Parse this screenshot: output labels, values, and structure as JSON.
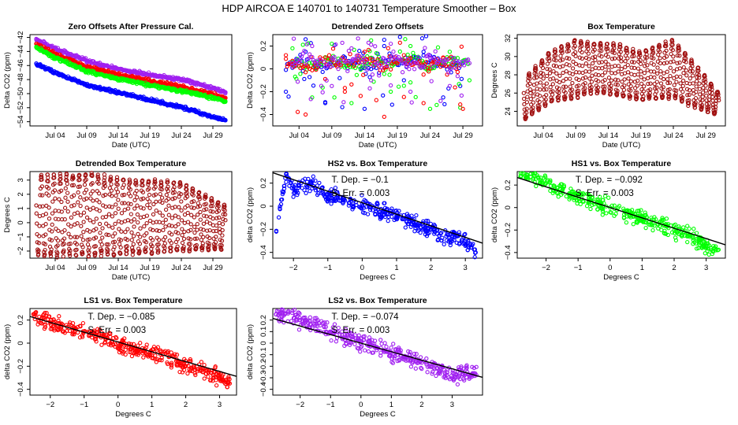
{
  "figure": {
    "title": "HDP    AIRCOA E    140701 to 140731    Temperature Smoother – Box"
  },
  "chart_data": [
    {
      "type": "scatter",
      "title": "Zero Offsets After Pressure Cal.",
      "xlabel": "Date (UTC)",
      "ylabel": "Delta CO2 (ppm)",
      "x_axis": "date",
      "xlim": [
        "2014-06-30",
        "2014-08-01"
      ],
      "ylim": [
        -54.6,
        -41.6
      ],
      "yticks": [
        -54,
        -52,
        -50,
        -48,
        -46,
        -44,
        -42
      ],
      "xticks": [
        {
          "date": "2014-07-04",
          "label": "Jul 04"
        },
        {
          "date": "2014-07-09",
          "label": "Jul 09"
        },
        {
          "date": "2014-07-14",
          "label": "Jul 14"
        },
        {
          "date": "2014-07-19",
          "label": "Jul 19"
        },
        {
          "date": "2014-07-24",
          "label": "Jul 24"
        },
        {
          "date": "2014-07-29",
          "label": "Jul 29"
        }
      ],
      "series": [
        {
          "color": "#a020f0",
          "x": [
            "2014-07-01",
            "2014-07-04",
            "2014-07-09",
            "2014-07-14",
            "2014-07-19",
            "2014-07-24",
            "2014-07-29",
            "2014-07-31"
          ],
          "y": [
            -42.3,
            -43.6,
            -45.3,
            -46.5,
            -47.3,
            -48.0,
            -49.2,
            -49.8
          ]
        },
        {
          "color": "#ff0000",
          "x": [
            "2014-07-01",
            "2014-07-04",
            "2014-07-09",
            "2014-07-14",
            "2014-07-19",
            "2014-07-24",
            "2014-07-29",
            "2014-07-31"
          ],
          "y": [
            -42.9,
            -44.4,
            -46.2,
            -47.3,
            -48.2,
            -49.0,
            -50.1,
            -50.6
          ]
        },
        {
          "color": "#00ff00",
          "x": [
            "2014-07-01",
            "2014-07-04",
            "2014-07-09",
            "2014-07-14",
            "2014-07-19",
            "2014-07-24",
            "2014-07-29",
            "2014-07-31"
          ],
          "y": [
            -43.4,
            -44.9,
            -46.8,
            -47.9,
            -48.8,
            -49.6,
            -50.6,
            -51.1
          ]
        },
        {
          "color": "#0000ff",
          "x": [
            "2014-07-01",
            "2014-07-04",
            "2014-07-09",
            "2014-07-14",
            "2014-07-19",
            "2014-07-24",
            "2014-07-29",
            "2014-07-31"
          ],
          "y": [
            -45.7,
            -47.0,
            -48.8,
            -49.8,
            -50.9,
            -51.9,
            -53.3,
            -53.8
          ]
        }
      ]
    },
    {
      "type": "scatter",
      "title": "Detrended Zero Offsets",
      "xlabel": "Date (UTC)",
      "ylabel": "Delta CO2 (ppm)",
      "x_axis": "date",
      "xlim": [
        "2014-06-30",
        "2014-08-01"
      ],
      "ylim": [
        -0.5,
        0.3
      ],
      "yticks": [
        -0.4,
        -0.2,
        0.0,
        0.2
      ],
      "xticks": [
        {
          "date": "2014-07-04",
          "label": "Jul 04"
        },
        {
          "date": "2014-07-09",
          "label": "Jul 09"
        },
        {
          "date": "2014-07-14",
          "label": "Jul 14"
        },
        {
          "date": "2014-07-19",
          "label": "Jul 19"
        },
        {
          "date": "2014-07-24",
          "label": "Jul 24"
        },
        {
          "date": "2014-07-29",
          "label": "Jul 29"
        }
      ],
      "series": [
        {
          "color": "#0000ff",
          "x": [
            "2014-07-02",
            "2014-07-05",
            "2014-07-08",
            "2014-07-11",
            "2014-07-14",
            "2014-07-17",
            "2014-07-20",
            "2014-07-23",
            "2014-07-26",
            "2014-07-29"
          ],
          "y": [
            -0.2,
            0.15,
            -0.3,
            0.1,
            -0.35,
            0.2,
            -0.1,
            0.15,
            -0.25,
            0.05
          ]
        },
        {
          "color": "#00ff00",
          "x": [
            "2014-07-03",
            "2014-07-06",
            "2014-07-09",
            "2014-07-12",
            "2014-07-15",
            "2014-07-18",
            "2014-07-21",
            "2014-07-24",
            "2014-07-27",
            "2014-07-30"
          ],
          "y": [
            0.18,
            -0.25,
            0.22,
            -0.3,
            0.25,
            -0.2,
            0.2,
            -0.35,
            0.15,
            -0.1
          ]
        },
        {
          "color": "#ff0000",
          "x": [
            "2014-07-02",
            "2014-07-05",
            "2014-07-08",
            "2014-07-11",
            "2014-07-14",
            "2014-07-17",
            "2014-07-20",
            "2014-07-23",
            "2014-07-26",
            "2014-07-29"
          ],
          "y": [
            0.12,
            -0.4,
            0.1,
            -0.2,
            0.15,
            -0.42,
            0.12,
            -0.3,
            0.1,
            -0.35
          ]
        },
        {
          "color": "#a020f0",
          "x": [
            "2014-07-03",
            "2014-07-06",
            "2014-07-09",
            "2014-07-12",
            "2014-07-15",
            "2014-07-18",
            "2014-07-21",
            "2014-07-24",
            "2014-07-27",
            "2014-07-30"
          ],
          "y": [
            0.05,
            0.2,
            -0.15,
            0.18,
            -0.1,
            0.22,
            -0.2,
            0.1,
            -0.15,
            0.05
          ]
        }
      ]
    },
    {
      "type": "scatter",
      "title": "Box Temperature",
      "xlabel": "Date (UTC)",
      "ylabel": "Degrees C",
      "x_axis": "date",
      "xlim": [
        "2014-06-30",
        "2014-08-01"
      ],
      "ylim": [
        22.4,
        32.4
      ],
      "yticks": [
        24,
        26,
        28,
        30,
        32
      ],
      "xticks": [
        {
          "date": "2014-07-04",
          "label": "Jul 04"
        },
        {
          "date": "2014-07-09",
          "label": "Jul 09"
        },
        {
          "date": "2014-07-14",
          "label": "Jul 14"
        },
        {
          "date": "2014-07-19",
          "label": "Jul 19"
        },
        {
          "date": "2014-07-24",
          "label": "Jul 24"
        },
        {
          "date": "2014-07-29",
          "label": "Jul 29"
        }
      ],
      "series": [
        {
          "color": "#a01010",
          "diurnal": true,
          "x": [
            "2014-07-01",
            "2014-07-05",
            "2014-07-09",
            "2014-07-11",
            "2014-07-15",
            "2014-07-19",
            "2014-07-24",
            "2014-07-27",
            "2014-07-31"
          ],
          "y_min": [
            23.0,
            25.0,
            25.5,
            26.0,
            25.8,
            25.2,
            25.5,
            24.5,
            23.5
          ],
          "y_max": [
            27.5,
            30.5,
            31.8,
            31.5,
            31.5,
            30.5,
            31.8,
            29.5,
            26.0
          ]
        }
      ]
    },
    {
      "type": "scatter",
      "title": "Detrended Box Temperature",
      "xlabel": "Date (UTC)",
      "ylabel": "Degrees C",
      "x_axis": "date",
      "xlim": [
        "2014-06-30",
        "2014-08-01"
      ],
      "ylim": [
        -2.5,
        3.6
      ],
      "yticks": [
        -2,
        -1,
        0,
        1,
        2,
        3
      ],
      "xticks": [
        {
          "date": "2014-07-04",
          "label": "Jul 04"
        },
        {
          "date": "2014-07-09",
          "label": "Jul 09"
        },
        {
          "date": "2014-07-14",
          "label": "Jul 14"
        },
        {
          "date": "2014-07-19",
          "label": "Jul 19"
        },
        {
          "date": "2014-07-24",
          "label": "Jul 24"
        },
        {
          "date": "2014-07-29",
          "label": "Jul 29"
        }
      ],
      "series": [
        {
          "color": "#a01010",
          "diurnal": true,
          "x": [
            "2014-07-01",
            "2014-07-09",
            "2014-07-16",
            "2014-07-24",
            "2014-07-31"
          ],
          "y_min": [
            -2.3,
            -2.3,
            -2.2,
            -2.0,
            -1.9
          ],
          "y_max": [
            3.3,
            3.4,
            3.0,
            2.8,
            1.2
          ]
        }
      ]
    },
    {
      "type": "scatter",
      "title": "HS2 vs. Box Temperature",
      "xlabel": "Degrees C",
      "ylabel": "delta CO2 (ppm)",
      "xlim": [
        -2.6,
        3.5
      ],
      "ylim": [
        -0.45,
        0.3
      ],
      "xticks": [
        -2,
        -1,
        0,
        1,
        2,
        3
      ],
      "yticks": [
        -0.4,
        -0.2,
        0.0,
        0.2
      ],
      "annotation": [
        "T. Dep. =  −0.1",
        "S. Err. =  0.003"
      ],
      "fit": {
        "slope": -0.1,
        "intercept": 0.03
      },
      "series": [
        {
          "color": "#0000ff",
          "x": [
            -2.5,
            -2.2,
            -2.0,
            -1.5,
            -1.0,
            -0.5,
            0.0,
            0.5,
            1.0,
            1.5,
            2.0,
            2.5,
            3.0,
            3.3
          ],
          "y": [
            -0.22,
            0.28,
            0.15,
            0.2,
            0.1,
            0.05,
            0.02,
            -0.05,
            -0.08,
            -0.15,
            -0.2,
            -0.25,
            -0.3,
            -0.4
          ]
        }
      ]
    },
    {
      "type": "scatter",
      "title": "HS1 vs. Box Temperature",
      "xlabel": "Degrees C",
      "ylabel": "delta CO2 (ppm)",
      "xlim": [
        -2.9,
        3.6
      ],
      "ylim": [
        -0.45,
        0.32
      ],
      "xticks": [
        -2,
        -1,
        0,
        1,
        2,
        3
      ],
      "yticks": [
        -0.4,
        -0.2,
        0.0,
        0.2
      ],
      "annotation": [
        "T. Dep. =  −0.092",
        "S. Err. =  0.003"
      ],
      "fit": {
        "slope": -0.092,
        "intercept": 0.0
      },
      "series": [
        {
          "color": "#00ff00",
          "x": [
            -2.4,
            -2.0,
            -1.5,
            -1.0,
            -0.5,
            0.0,
            0.5,
            1.0,
            1.5,
            2.0,
            2.5,
            3.0,
            3.3
          ],
          "y": [
            0.3,
            0.22,
            0.15,
            0.1,
            0.05,
            0.0,
            -0.05,
            -0.1,
            -0.15,
            -0.2,
            -0.25,
            -0.35,
            -0.38
          ]
        }
      ]
    },
    {
      "type": "scatter",
      "title": "LS1 vs. Box Temperature",
      "xlabel": "Degrees C",
      "ylabel": "delta CO2 (ppm)",
      "xlim": [
        -2.6,
        3.5
      ],
      "ylim": [
        -0.45,
        0.3
      ],
      "xticks": [
        -2,
        -1,
        0,
        1,
        2,
        3
      ],
      "yticks": [
        -0.4,
        -0.2,
        0.0,
        0.2
      ],
      "annotation": [
        "T. Dep. =  −0.085",
        "S. Err. =  0.003"
      ],
      "fit": {
        "slope": -0.085,
        "intercept": 0.01
      },
      "series": [
        {
          "color": "#ff0000",
          "x": [
            -2.5,
            -2.0,
            -1.5,
            -1.0,
            -0.5,
            0.0,
            0.5,
            1.0,
            1.5,
            2.0,
            2.5,
            3.0,
            3.3
          ],
          "y": [
            0.25,
            0.18,
            0.14,
            0.1,
            0.05,
            0.0,
            -0.05,
            -0.08,
            -0.12,
            -0.2,
            -0.25,
            -0.3,
            -0.35
          ]
        }
      ]
    },
    {
      "type": "scatter",
      "title": "LS2 vs. Box Temperature",
      "xlabel": "Degrees C",
      "ylabel": "delta CO2 (ppm)",
      "xlim": [
        -2.9,
        4.0
      ],
      "ylim": [
        -0.45,
        0.3
      ],
      "xticks": [
        -2,
        -1,
        0,
        1,
        2,
        3
      ],
      "yticks": [
        -0.4,
        -0.3,
        -0.2,
        -0.1,
        0.0,
        0.1,
        0.2
      ],
      "annotation": [
        "T. Dep. =  −0.074",
        "S. Err. =  0.003"
      ],
      "fit": {
        "slope": -0.074,
        "intercept": 0.0
      },
      "series": [
        {
          "color": "#a020f0",
          "x": [
            -2.5,
            -2.0,
            -1.5,
            -1.0,
            -0.5,
            0.0,
            0.5,
            1.0,
            1.5,
            2.0,
            2.5,
            3.0,
            3.5
          ],
          "y": [
            0.25,
            0.2,
            0.15,
            0.1,
            0.05,
            0.0,
            -0.04,
            -0.08,
            -0.12,
            -0.17,
            -0.22,
            -0.3,
            -0.25
          ]
        }
      ]
    }
  ]
}
